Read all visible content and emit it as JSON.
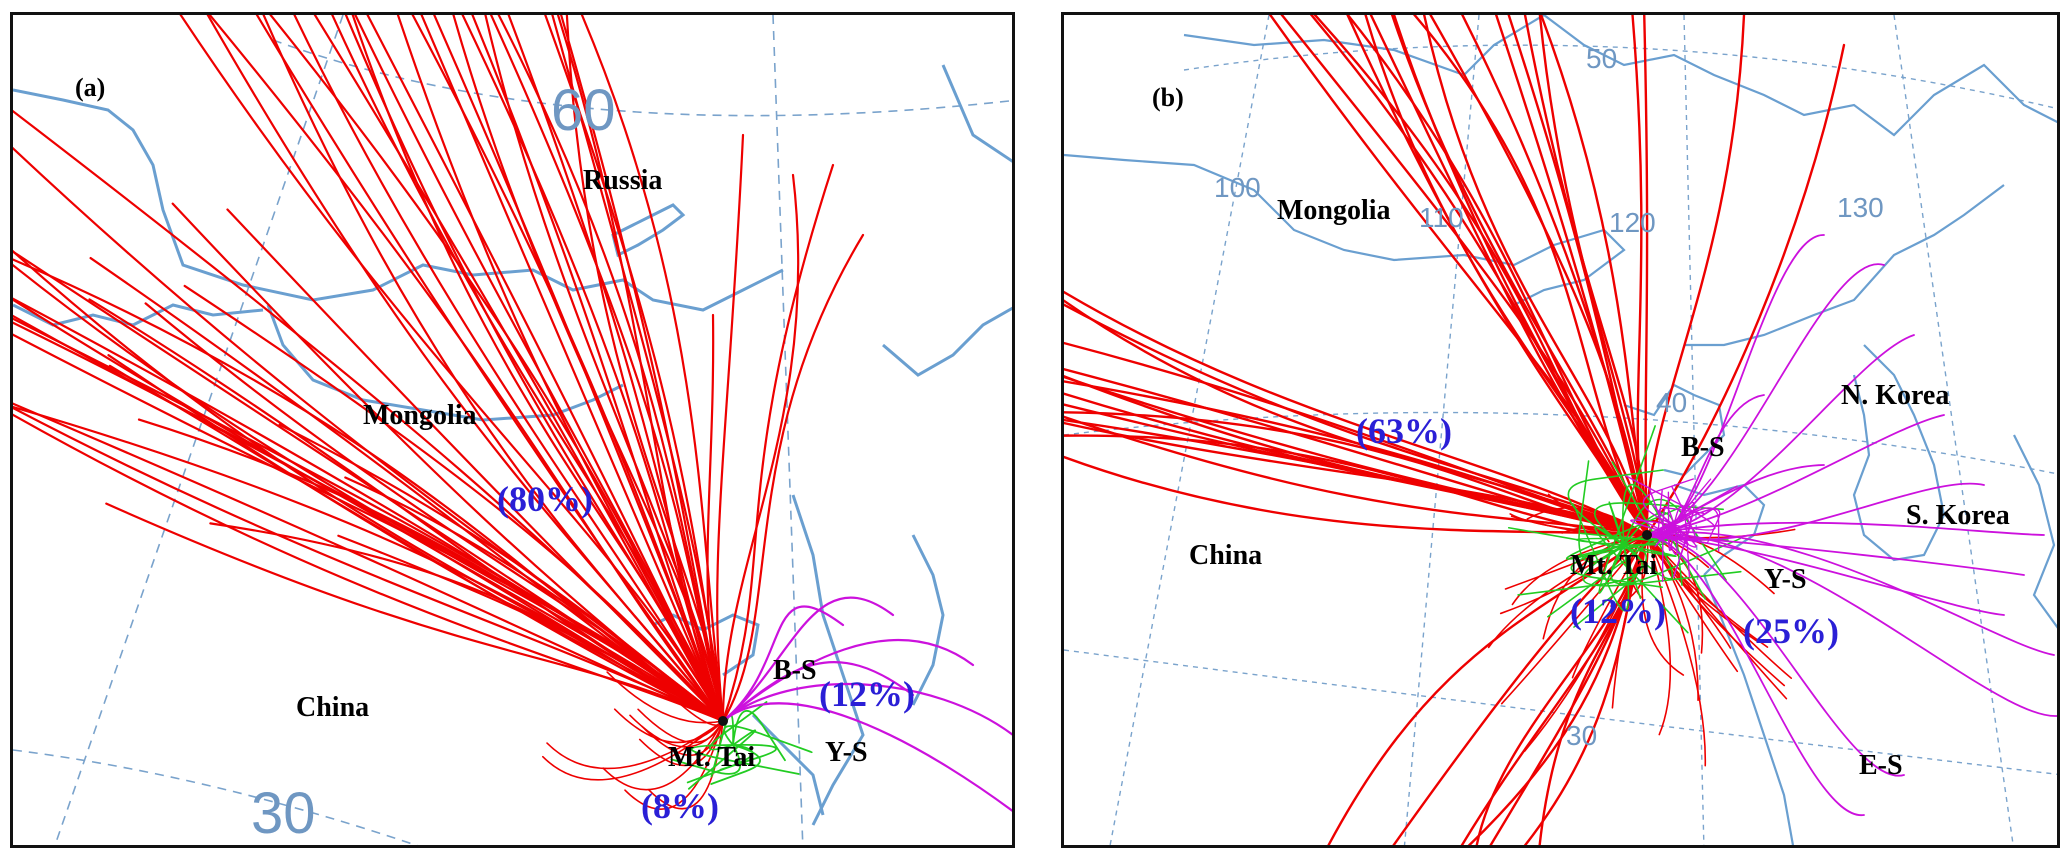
{
  "colors": {
    "trajectory_cluster_long": "#ee0000",
    "trajectory_cluster_local": "#22cc22",
    "trajectory_cluster_marine": "#cc11dd",
    "coastline": "#6a9fd0",
    "graticule": "#7aa3cc",
    "percent_label": "#2a1fd6"
  },
  "panel_a": {
    "panel_label": "(a)",
    "regions": {
      "russia": "Russia",
      "mongolia": "Mongolia",
      "china": "China"
    },
    "sites": {
      "bs": "B-S",
      "mt_tai": "Mt. Tai",
      "ys": "Y-S"
    },
    "percentages": {
      "long_range": "(80%)",
      "marine": "(12%)",
      "local": "(8%)"
    },
    "graticule_labels": {
      "lat60": "60",
      "lat30": "30"
    }
  },
  "panel_b": {
    "panel_label": "(b)",
    "regions": {
      "mongolia": "Mongolia",
      "china": "China",
      "n_korea": "N. Korea",
      "s_korea": "S. Korea"
    },
    "sites": {
      "bs": "B-S",
      "mt_tai": "Mt. Tai",
      "ys": "Y-S",
      "es": "E-S"
    },
    "percentages": {
      "long_range": "(63%)",
      "local": "(12%)",
      "marine": "(25%)"
    },
    "graticule_labels": {
      "lon100": "100",
      "lon110": "110",
      "lon120": "120",
      "lon130": "130",
      "lat50": "50",
      "lat40": "40",
      "lat30": "30"
    }
  }
}
